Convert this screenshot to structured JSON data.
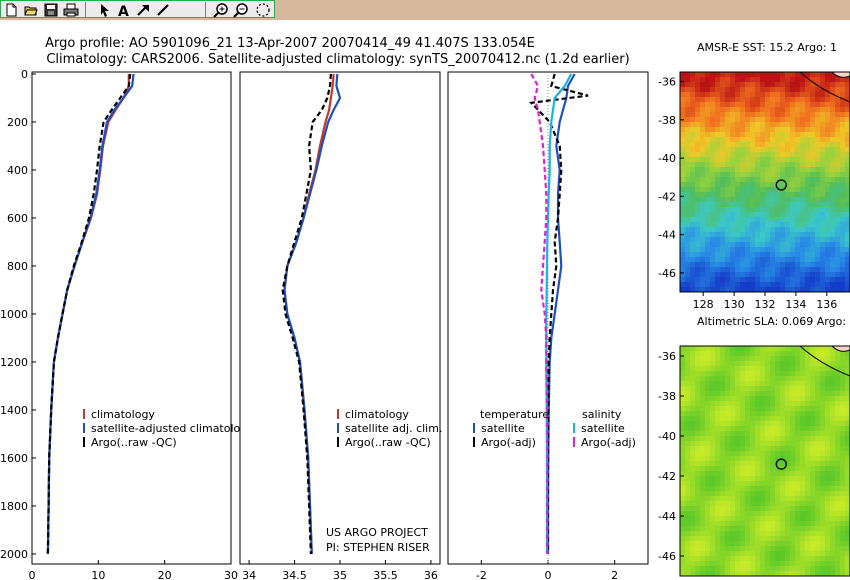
{
  "toolbar": {
    "icons": [
      "new-file-icon",
      "open-folder-icon",
      "save-icon",
      "print-icon",
      "pointer-icon",
      "text-tool-icon",
      "arrow-tool-icon",
      "line-tool-icon",
      "zoom-in-icon",
      "zoom-out-icon",
      "rotate-icon"
    ],
    "bar_color": "#d6b89a",
    "group_border_color": "#2fa84f"
  },
  "title_line1": "Argo profile: AO 5901096_21 13-Apr-2007 20070414_49 41.407S 133.054E",
  "title_line2": "Climatology: CARS2006. Satellite-adjusted climatology: synTS_20070412.nc (1.2d earlier)",
  "credit": [
    "US ARGO PROJECT",
    "PI: STEPHEN RISER"
  ],
  "colors": {
    "climatology": "#c0392b",
    "satellite": "#1f4fbf",
    "argo": "#000000",
    "salinity_sat": "#19b4e6",
    "salinity_argo": "#e020d0"
  },
  "chart_data": [
    {
      "type": "line",
      "panel": "left",
      "xlim": [
        0,
        30
      ],
      "ylim": [
        0,
        2000
      ],
      "y_inverted": true,
      "xticks": [
        "0",
        "10",
        "20",
        "30"
      ],
      "yticks": [
        "0",
        "200",
        "400",
        "600",
        "800",
        "1000",
        "1200",
        "1400",
        "1600",
        "1800",
        "2000"
      ],
      "legend": [
        "climatology",
        "satellite-adjusted climatology",
        "Argo(..raw -QC)"
      ],
      "legend_position": "bottom-right",
      "series": [
        {
          "name": "climatology",
          "x": [
            14.6,
            14.6,
            13.8,
            12.6,
            11.5,
            10.7,
            10.3,
            9.8,
            8.9,
            7.6,
            6.4,
            5.3,
            4.6,
            3.9,
            3.3,
            2.9,
            2.6,
            2.5,
            2.4
          ],
          "y": [
            0,
            50,
            100,
            150,
            200,
            300,
            400,
            500,
            600,
            700,
            800,
            900,
            1000,
            1100,
            1200,
            1400,
            1600,
            1800,
            2000
          ]
        },
        {
          "name": "satellite-adjusted climatology",
          "x": [
            15.3,
            15.1,
            13.8,
            12.4,
            11.3,
            10.6,
            10.2,
            9.7,
            8.8,
            7.6,
            6.4,
            5.3,
            4.6,
            3.9,
            3.3,
            2.9,
            2.6,
            2.5,
            2.4
          ],
          "y": [
            0,
            50,
            100,
            150,
            200,
            300,
            400,
            500,
            600,
            700,
            800,
            900,
            1000,
            1100,
            1200,
            1400,
            1600,
            1800,
            2000
          ]
        },
        {
          "name": "Argo(..raw -QC)",
          "x": [
            14.8,
            14.6,
            13.3,
            12.0,
            10.8,
            10.2,
            9.8,
            9.3,
            8.6,
            7.5,
            6.3,
            5.3,
            4.6,
            3.9,
            3.3,
            2.9,
            2.6,
            2.5,
            2.4
          ],
          "y": [
            0,
            50,
            100,
            150,
            200,
            300,
            400,
            500,
            600,
            700,
            800,
            900,
            1000,
            1100,
            1200,
            1400,
            1600,
            1800,
            2000
          ]
        }
      ]
    },
    {
      "type": "line",
      "panel": "middle",
      "xlim": [
        33.9,
        36.1
      ],
      "ylim": [
        0,
        2000
      ],
      "y_inverted": true,
      "xticks": [
        "34",
        "34.5",
        "35",
        "35.5",
        "36"
      ],
      "legend": [
        "climatology",
        "satellite adj. clim.",
        "Argo(..raw -QC)"
      ],
      "legend_position": "bottom-right",
      "series": [
        {
          "name": "climatology",
          "x": [
            34.93,
            34.92,
            34.9,
            34.88,
            34.84,
            34.78,
            34.73,
            34.66,
            34.6,
            34.52,
            34.42,
            34.39,
            34.42,
            34.5,
            34.56,
            34.61,
            34.65,
            34.67,
            34.69
          ],
          "y": [
            0,
            50,
            100,
            150,
            200,
            300,
            400,
            500,
            600,
            700,
            800,
            900,
            1000,
            1100,
            1200,
            1400,
            1600,
            1800,
            2000
          ]
        },
        {
          "name": "satellite adj. clim.",
          "x": [
            34.97,
            34.96,
            35.0,
            34.93,
            34.87,
            34.8,
            34.74,
            34.67,
            34.6,
            34.52,
            34.42,
            34.39,
            34.42,
            34.5,
            34.56,
            34.61,
            34.65,
            34.67,
            34.69
          ],
          "y": [
            0,
            50,
            100,
            150,
            200,
            300,
            400,
            500,
            600,
            700,
            800,
            900,
            1000,
            1100,
            1200,
            1400,
            1600,
            1800,
            2000
          ]
        },
        {
          "name": "Argo(..raw -QC)",
          "x": [
            34.9,
            34.89,
            34.86,
            34.8,
            34.7,
            34.66,
            34.68,
            34.63,
            34.58,
            34.5,
            34.42,
            34.37,
            34.4,
            34.48,
            34.55,
            34.6,
            34.64,
            34.66,
            34.68
          ],
          "y": [
            0,
            50,
            100,
            150,
            200,
            300,
            400,
            500,
            600,
            700,
            800,
            900,
            1000,
            1100,
            1200,
            1400,
            1600,
            1800,
            2000
          ]
        }
      ]
    },
    {
      "type": "line",
      "panel": "right",
      "xlim": [
        -3,
        3
      ],
      "ylim": [
        0,
        2000
      ],
      "y_inverted": true,
      "xticks": [
        "-2",
        "0",
        "2"
      ],
      "legend": [
        "temperature",
        "satellite",
        "Argo(-adj)",
        "salinity",
        "satellite",
        "Argo(-adj)"
      ],
      "legend_position": "bottom",
      "series": [
        {
          "name": "temperature satellite",
          "x": [
            0.8,
            0.6,
            0.55,
            0.45,
            0.35,
            0.25,
            0.35,
            0.3,
            0.3,
            0.35,
            0.4,
            0.3,
            0.2,
            0.1,
            0.05,
            0.02,
            0.01,
            0.0,
            0.0
          ],
          "y": [
            0,
            50,
            100,
            150,
            200,
            300,
            400,
            500,
            600,
            700,
            800,
            900,
            1000,
            1100,
            1200,
            1400,
            1600,
            1800,
            2000
          ]
        },
        {
          "name": "temperature Argo(-adj)",
          "x": [
            0.2,
            0.1,
            1.2,
            -0.5,
            0.05,
            0.35,
            0.4,
            0.35,
            0.3,
            0.2,
            0.25,
            0.15,
            0.1,
            0.05,
            0.02,
            0.01,
            0.0,
            0.0,
            0.0
          ],
          "y": [
            0,
            50,
            90,
            120,
            200,
            300,
            400,
            500,
            600,
            700,
            800,
            900,
            1000,
            1100,
            1200,
            1400,
            1600,
            1800,
            2000
          ]
        },
        {
          "name": "salinity satellite",
          "x": [
            0.7,
            0.5,
            0.2,
            0.15,
            0.1,
            0.05,
            0.05,
            0.02,
            0.0,
            -0.02,
            -0.03,
            -0.04,
            -0.05,
            -0.05,
            -0.05,
            -0.04,
            -0.03,
            -0.03,
            -0.03
          ],
          "y": [
            0,
            50,
            100,
            150,
            200,
            300,
            400,
            500,
            600,
            700,
            800,
            900,
            1000,
            1100,
            1200,
            1400,
            1600,
            1800,
            2000
          ]
        },
        {
          "name": "salinity Argo(-adj)",
          "x": [
            -0.5,
            -0.3,
            -0.4,
            -0.3,
            -0.25,
            -0.15,
            -0.1,
            -0.05,
            -0.05,
            -0.1,
            -0.15,
            -0.2,
            -0.1,
            -0.05,
            -0.05,
            -0.03,
            -0.02,
            -0.02,
            -0.02
          ],
          "y": [
            0,
            50,
            100,
            150,
            200,
            300,
            400,
            500,
            600,
            700,
            800,
            900,
            1000,
            1100,
            1200,
            1400,
            1600,
            1800,
            2000
          ]
        }
      ]
    },
    {
      "type": "heatmap",
      "panel": "map-top",
      "title": "AMSR-E SST: 15.2 Argo: 1",
      "xlim": [
        126.5,
        137.5
      ],
      "ylim": [
        -47,
        -35.5
      ],
      "xticks": [
        "128",
        "130",
        "132",
        "134",
        "136"
      ],
      "yticks": [
        "-36",
        "-38",
        "-40",
        "-42",
        "-44",
        "-46"
      ],
      "marker": {
        "lon": 133.054,
        "lat": -41.407
      }
    },
    {
      "type": "heatmap",
      "panel": "map-bottom",
      "title": "Altimetric SLA: 0.069 Argo: 0.",
      "xlim": [
        126.5,
        137.5
      ],
      "ylim": [
        -47,
        -35.5
      ],
      "yticks": [
        "-36",
        "-38",
        "-40",
        "-42",
        "-44",
        "-46"
      ],
      "marker": {
        "lon": 133.054,
        "lat": -41.407
      }
    }
  ]
}
